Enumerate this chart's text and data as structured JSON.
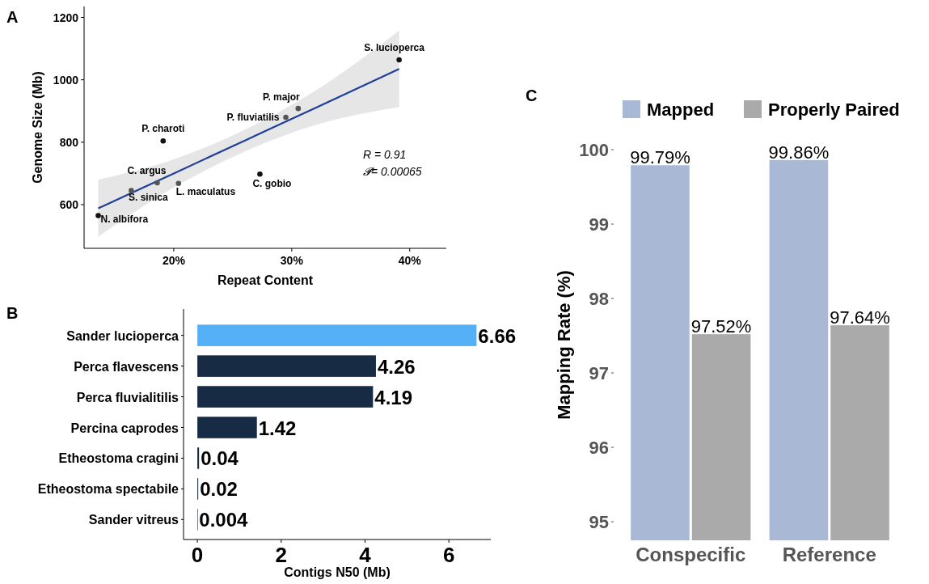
{
  "chart_data": [
    {
      "type": "scatter",
      "title": "A",
      "xlabel": "Repeat Content",
      "ylabel": "Genome Size (Mb)",
      "xlim": [
        12.4,
        43.1
      ],
      "xticks": [
        {
          "value": 20,
          "label": "20%"
        },
        {
          "value": 30,
          "label": "30%"
        },
        {
          "value": 40,
          "label": "40%"
        }
      ],
      "ylim": [
        460,
        1235
      ],
      "yticks": [
        600,
        800,
        1000,
        1200
      ],
      "series": [
        {
          "type": "scatter",
          "x": [
            39.1,
            30.55,
            29.5,
            19.1,
            27.3,
            18.6,
            20.4,
            16.4,
            13.6
          ],
          "values": [
            1064,
            908,
            880,
            804,
            698,
            670,
            668,
            645,
            565
          ],
          "colors": [
            "#111111",
            "#555555",
            "#555555",
            "#111111",
            "#111111",
            "#555555",
            "#555555",
            "#555555",
            "#111111"
          ]
        },
        {
          "type": "line",
          "color": "#1f3f99",
          "x": [
            13.6,
            20,
            26,
            32,
            39.1
          ],
          "values": [
            588,
            700,
            805,
            910,
            1035
          ],
          "lower": [
            497,
            655,
            770,
            855,
            913
          ],
          "upper": [
            680,
            745,
            840,
            965,
            1157
          ]
        }
      ],
      "annotations": [
        {
          "text": "S. lucioperca",
          "x": 39.1,
          "y": 1064
        },
        {
          "text": "P. major",
          "x": 30.55,
          "y": 908
        },
        {
          "text": "P. fluviatilis",
          "x": 29.5,
          "y": 880
        },
        {
          "text": "P. charoti",
          "x": 19.1,
          "y": 804
        },
        {
          "text": "C. gobio",
          "x": 27.3,
          "y": 698
        },
        {
          "text": "C. argus",
          "x": 18.6,
          "y": 670
        },
        {
          "text": "L. maculatus",
          "x": 20.4,
          "y": 668
        },
        {
          "text": "S. sinica",
          "x": 16.4,
          "y": 645
        },
        {
          "text": "N. albifora",
          "x": 13.6,
          "y": 565
        },
        "R = 0.91",
        "𝓟= 0.00065"
      ]
    },
    {
      "type": "bar",
      "orientation": "horizontal",
      "title": "B",
      "xlabel": "Contigs N50 (Mb)",
      "categories": [
        "Sander lucioperca",
        "Perca flavescens",
        "Perca fluvialitilis",
        "Percina caprodes",
        "Etheostoma cragini",
        "Etheostoma spectabile",
        "Sander vitreus"
      ],
      "values": [
        6.66,
        4.26,
        4.19,
        1.42,
        0.04,
        0.02,
        0.004
      ],
      "colors": [
        "#56b0f5",
        "#172b45",
        "#172b45",
        "#172b45",
        "#172b45",
        "#172b45",
        "#172b45"
      ],
      "xlim": [
        -0.33,
        7
      ],
      "xticks": [
        0,
        2,
        4,
        6
      ],
      "data_labels": true
    },
    {
      "type": "bar",
      "title": "C",
      "ylabel": "Mapping Rate (%)",
      "categories": [
        "Conspecific",
        "Reference"
      ],
      "ylim": [
        94.75,
        100
      ],
      "yticks": [
        95,
        96,
        97,
        98,
        99,
        100
      ],
      "legend": "top",
      "series": [
        {
          "name": "Mapped",
          "color": "#a8b8d5",
          "values": [
            99.79,
            99.86
          ],
          "value_labels": [
            "99.79%",
            "99.86%"
          ]
        },
        {
          "name": "Properly Paired",
          "color": "#aaaaaa",
          "values": [
            97.52,
            97.64
          ],
          "value_labels": [
            "97.52%",
            "97.64%"
          ]
        }
      ]
    }
  ]
}
